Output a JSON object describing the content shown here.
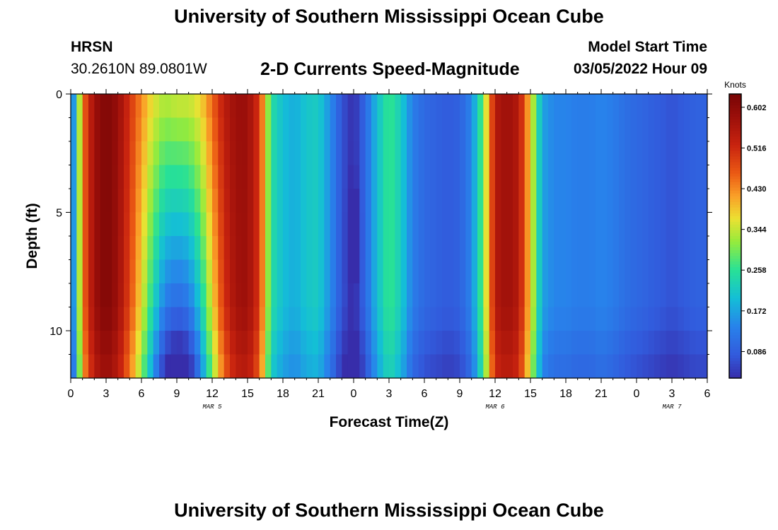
{
  "header": {
    "title": "University of Southern Mississippi Ocean Cube",
    "station": "HRSN",
    "coordinates": "30.2610N  89.0801W",
    "subtitle": "2-D Currents Speed-Magnitude",
    "model_start_label": "Model Start Time",
    "model_start_value": "03/05/2022 Hour 09"
  },
  "footer": {
    "title": "University of Southern Mississippi Ocean Cube"
  },
  "chart_data": {
    "type": "heatmap",
    "title": "2-D Currents Speed-Magnitude",
    "xlabel": "Forecast Time(Z)",
    "ylabel": "Depth (ft)",
    "x_tick_labels": [
      "0",
      "3",
      "6",
      "9",
      "12",
      "15",
      "18",
      "21",
      "0",
      "3",
      "6",
      "9",
      "12",
      "15",
      "18",
      "21",
      "0",
      "3",
      "6"
    ],
    "x_range_hours": [
      0,
      54
    ],
    "date_labels": [
      {
        "text": "MAR 5",
        "hour": 12
      },
      {
        "text": "MAR 6",
        "hour": 36
      },
      {
        "text": "MAR 7",
        "hour": 51
      }
    ],
    "y_tick_labels": [
      "0",
      "5",
      "10"
    ],
    "y_range_ft": [
      0,
      12
    ],
    "colorbar": {
      "title": "Knots",
      "tick_labels": [
        "0.602",
        "0.516",
        "0.430",
        "0.344",
        "0.258",
        "0.172",
        "0.086"
      ],
      "range": [
        0.03,
        0.63
      ]
    },
    "speed_profile_knots": [
      {
        "hour": 0,
        "value": 0.09
      },
      {
        "hour": 0.5,
        "value": 0.23
      },
      {
        "hour": 1,
        "value": 0.44
      },
      {
        "hour": 2,
        "value": 0.58
      },
      {
        "hour": 3,
        "value": 0.62
      },
      {
        "hour": 4,
        "value": 0.58
      },
      {
        "hour": 5,
        "value": 0.48
      },
      {
        "hour": 6,
        "value": 0.36
      },
      {
        "hour": 7,
        "value": 0.22
      },
      {
        "hour": 8,
        "value": 0.11
      },
      {
        "hour": 9,
        "value": 0.08
      },
      {
        "hour": 10,
        "value": 0.1
      },
      {
        "hour": 11,
        "value": 0.2
      },
      {
        "hour": 12,
        "value": 0.36
      },
      {
        "hour": 13,
        "value": 0.5
      },
      {
        "hour": 14,
        "value": 0.57
      },
      {
        "hour": 15,
        "value": 0.58
      },
      {
        "hour": 16,
        "value": 0.5
      },
      {
        "hour": 17,
        "value": 0.25
      },
      {
        "hour": 18,
        "value": 0.2
      },
      {
        "hour": 19,
        "value": 0.18
      },
      {
        "hour": 20,
        "value": 0.21
      },
      {
        "hour": 21,
        "value": 0.22
      },
      {
        "hour": 22,
        "value": 0.15
      },
      {
        "hour": 23,
        "value": 0.07
      },
      {
        "hour": 24,
        "value": 0.03
      },
      {
        "hour": 25,
        "value": 0.1
      },
      {
        "hour": 26,
        "value": 0.2
      },
      {
        "hour": 27,
        "value": 0.27
      },
      {
        "hour": 28,
        "value": 0.22
      },
      {
        "hour": 29,
        "value": 0.13
      },
      {
        "hour": 30,
        "value": 0.1
      },
      {
        "hour": 31,
        "value": 0.09
      },
      {
        "hour": 32,
        "value": 0.08
      },
      {
        "hour": 33,
        "value": 0.09
      },
      {
        "hour": 34,
        "value": 0.14
      },
      {
        "hour": 35,
        "value": 0.3
      },
      {
        "hour": 36,
        "value": 0.55
      },
      {
        "hour": 37,
        "value": 0.58
      },
      {
        "hour": 38,
        "value": 0.55
      },
      {
        "hour": 39,
        "value": 0.38
      },
      {
        "hour": 40,
        "value": 0.17
      },
      {
        "hour": 41,
        "value": 0.14
      },
      {
        "hour": 42,
        "value": 0.14
      },
      {
        "hour": 43,
        "value": 0.13
      },
      {
        "hour": 44,
        "value": 0.13
      },
      {
        "hour": 45,
        "value": 0.14
      },
      {
        "hour": 46,
        "value": 0.13
      },
      {
        "hour": 47,
        "value": 0.11
      },
      {
        "hour": 48,
        "value": 0.1
      },
      {
        "hour": 49,
        "value": 0.09
      },
      {
        "hour": 50,
        "value": 0.08
      },
      {
        "hour": 51,
        "value": 0.07
      },
      {
        "hour": 52,
        "value": 0.08
      },
      {
        "hour": 53,
        "value": 0.09
      },
      {
        "hour": 54,
        "value": 0.09
      }
    ],
    "depth_variation_note_hours": [
      {
        "hour": 9,
        "surface_knots": 0.27,
        "bottom_knots": 0.08
      },
      {
        "hour": 24,
        "min_knots": 0.02,
        "depth_ft": 6
      }
    ]
  }
}
